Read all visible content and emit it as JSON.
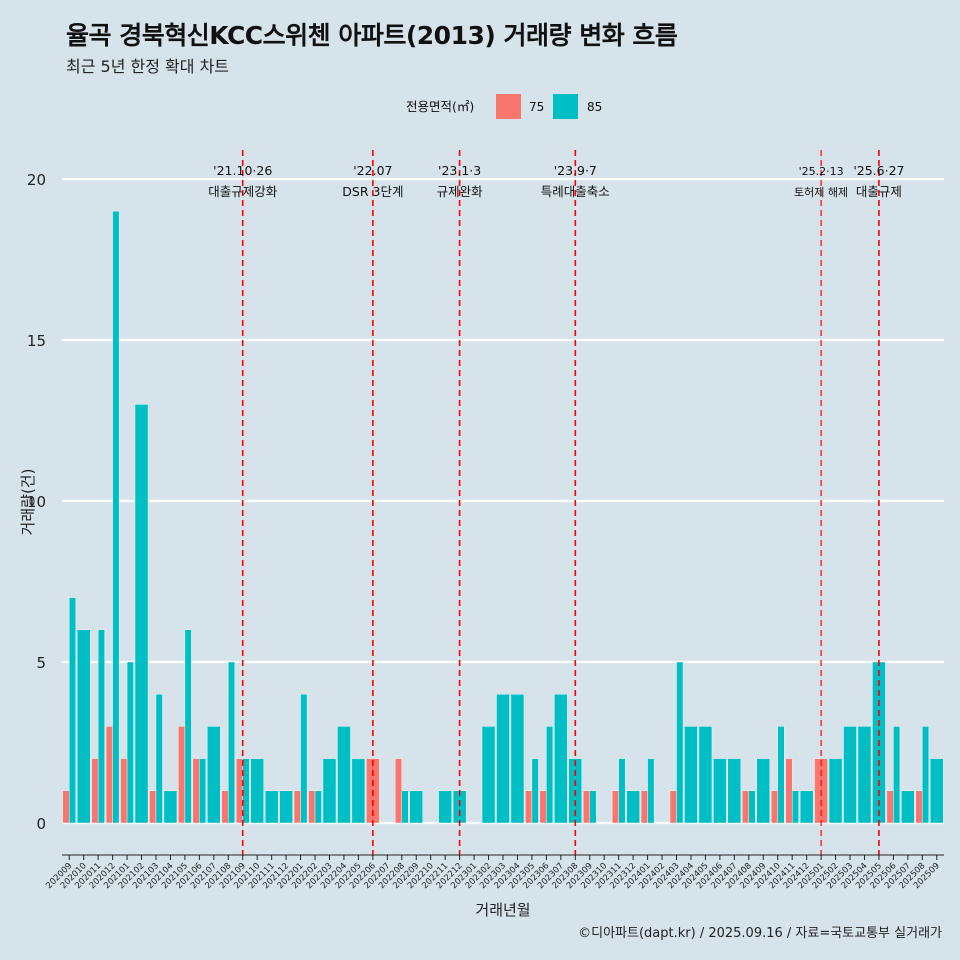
{
  "title": "율곡 경북혁신KCC스위첸 아파트(2013) 거래량 변화 흐름",
  "subtitle": "최근 5년 한정 확대 차트",
  "caption": "©디아파트(dapt.kr) / 2025.09.16 / 자료=국토교통부 실거래가",
  "colors": {
    "background": "#d6e3ea",
    "s75": "#f8766d",
    "s85": "#00bfc4",
    "event_line": "#ff0000"
  },
  "chart_data": {
    "type": "bar",
    "xlabel": "거래년월",
    "ylabel": "거래량(건)",
    "ylim": [
      0,
      20
    ],
    "yticks": [
      0,
      5,
      10,
      15,
      20
    ],
    "legend": {
      "title": "전용면적(㎡)",
      "placement": "top"
    },
    "categories": [
      "202009",
      "202010",
      "202011",
      "202012",
      "202101",
      "202102",
      "202103",
      "202104",
      "202105",
      "202106",
      "202107",
      "202108",
      "202109",
      "202110",
      "202111",
      "202112",
      "202201",
      "202202",
      "202203",
      "202204",
      "202205",
      "202206",
      "202207",
      "202208",
      "202209",
      "202210",
      "202211",
      "202212",
      "202301",
      "202302",
      "202303",
      "202304",
      "202305",
      "202306",
      "202307",
      "202308",
      "202309",
      "202310",
      "202311",
      "202312",
      "202401",
      "202402",
      "202403",
      "202404",
      "202405",
      "202406",
      "202407",
      "202408",
      "202409",
      "202410",
      "202411",
      "202412",
      "202501",
      "202502",
      "202503",
      "202504",
      "202505",
      "202506",
      "202507",
      "202508",
      "202509"
    ],
    "series": [
      {
        "name": "75",
        "values": [
          1,
          0,
          2,
          3,
          2,
          0,
          1,
          0,
          3,
          2,
          0,
          1,
          2,
          0,
          0,
          0,
          1,
          1,
          0,
          0,
          0,
          2,
          0,
          2,
          0,
          0,
          0,
          0,
          0,
          0,
          0,
          0,
          1,
          1,
          0,
          0,
          1,
          0,
          1,
          0,
          1,
          0,
          1,
          0,
          0,
          0,
          0,
          1,
          0,
          1,
          2,
          0,
          2,
          0,
          0,
          0,
          0,
          1,
          0,
          1,
          0
        ]
      },
      {
        "name": "85",
        "values": [
          7,
          6,
          6,
          19,
          5,
          13,
          4,
          1,
          6,
          2,
          3,
          5,
          2,
          2,
          1,
          1,
          4,
          1,
          2,
          3,
          2,
          0,
          0,
          1,
          1,
          0,
          1,
          1,
          0,
          3,
          4,
          4,
          2,
          3,
          4,
          2,
          1,
          0,
          2,
          1,
          2,
          0,
          5,
          3,
          3,
          2,
          2,
          1,
          2,
          3,
          1,
          1,
          0,
          2,
          3,
          3,
          5,
          3,
          1,
          3,
          2
        ]
      }
    ],
    "events": [
      {
        "date": "'21.10·26",
        "label": "대출규제강화",
        "pos": 12.5,
        "small": false
      },
      {
        "date": "'22.07",
        "label": "DSR 3단계",
        "pos": 21.5,
        "small": false
      },
      {
        "date": "'23.1·3",
        "label": "규제완화",
        "pos": 27.5,
        "small": false
      },
      {
        "date": "'23.9·7",
        "label": "특례대출축소",
        "pos": 35.5,
        "small": false
      },
      {
        "date": "'25.2·13",
        "label": "토허제 해제",
        "pos": 52.5,
        "small": true
      },
      {
        "date": "'25.6·27",
        "label": "대출규제",
        "pos": 56.5,
        "small": false
      }
    ]
  }
}
